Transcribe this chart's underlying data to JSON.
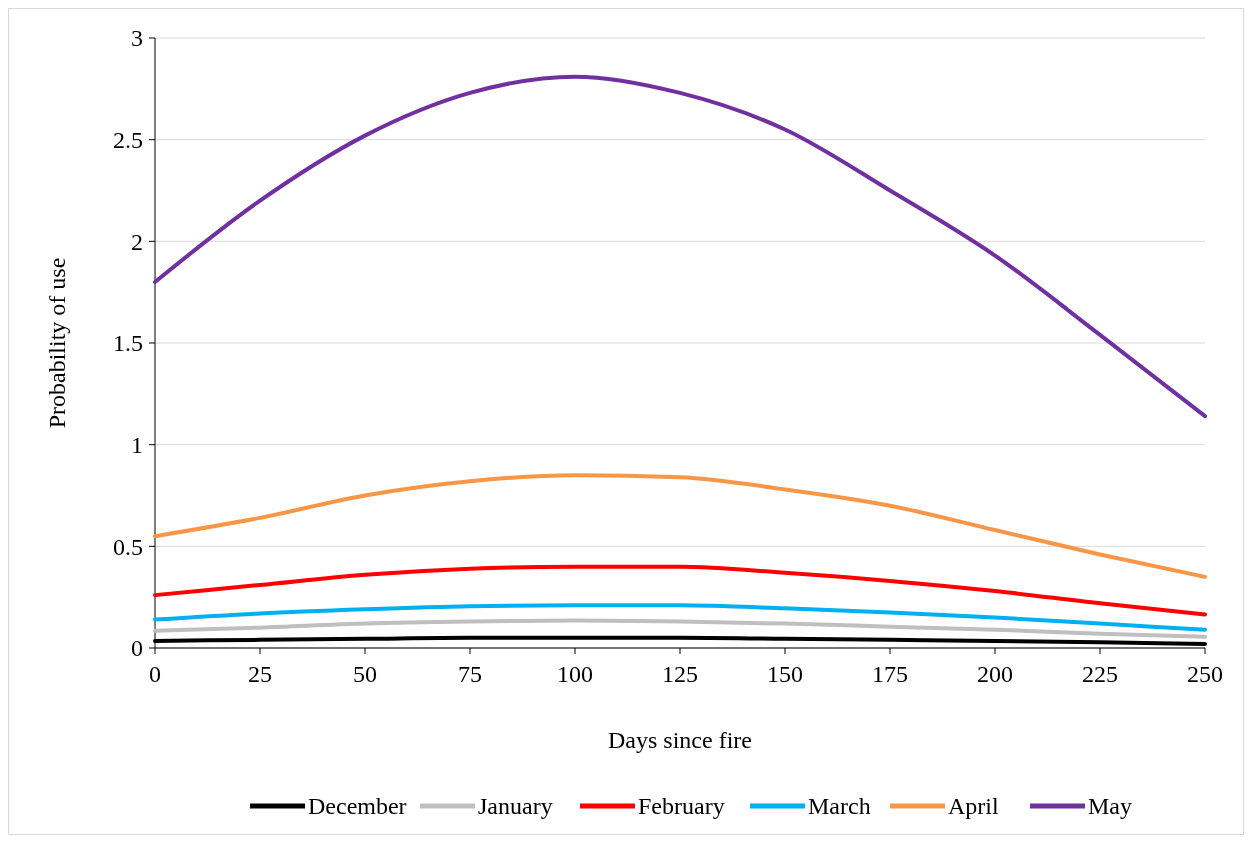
{
  "chart_data": {
    "type": "line",
    "xlabel": "Days since fire",
    "ylabel": "Probability of use",
    "x": [
      0,
      25,
      50,
      75,
      100,
      125,
      150,
      175,
      200,
      225,
      250
    ],
    "xlim": [
      0,
      250
    ],
    "xticks": [
      0,
      25,
      50,
      75,
      100,
      125,
      150,
      175,
      200,
      225,
      250
    ],
    "ylim": [
      0,
      3
    ],
    "yticks": [
      0,
      0.5,
      1,
      1.5,
      2,
      2.5,
      3
    ],
    "grid": "y",
    "legend": "bottom",
    "line_style": "solid",
    "marker": "none",
    "series": [
      {
        "name": "December",
        "color": "#000000",
        "values": [
          0.035,
          0.04,
          0.045,
          0.05,
          0.05,
          0.05,
          0.045,
          0.04,
          0.035,
          0.028,
          0.02
        ]
      },
      {
        "name": "January",
        "color": "#bfbfbf",
        "values": [
          0.085,
          0.1,
          0.12,
          0.13,
          0.135,
          0.13,
          0.12,
          0.105,
          0.09,
          0.07,
          0.055
        ]
      },
      {
        "name": "February",
        "color": "#ff0000",
        "values": [
          0.26,
          0.31,
          0.36,
          0.39,
          0.4,
          0.4,
          0.37,
          0.33,
          0.28,
          0.22,
          0.165
        ]
      },
      {
        "name": "March",
        "color": "#00b0f0",
        "values": [
          0.14,
          0.17,
          0.19,
          0.205,
          0.21,
          0.21,
          0.195,
          0.175,
          0.15,
          0.12,
          0.09
        ]
      },
      {
        "name": "April",
        "color": "#f79646",
        "values": [
          0.55,
          0.64,
          0.75,
          0.82,
          0.85,
          0.84,
          0.78,
          0.7,
          0.58,
          0.46,
          0.35
        ]
      },
      {
        "name": "May",
        "color": "#7030a0",
        "values": [
          1.8,
          2.2,
          2.52,
          2.73,
          2.81,
          2.73,
          2.55,
          2.25,
          1.93,
          1.54,
          1.14
        ]
      }
    ]
  }
}
